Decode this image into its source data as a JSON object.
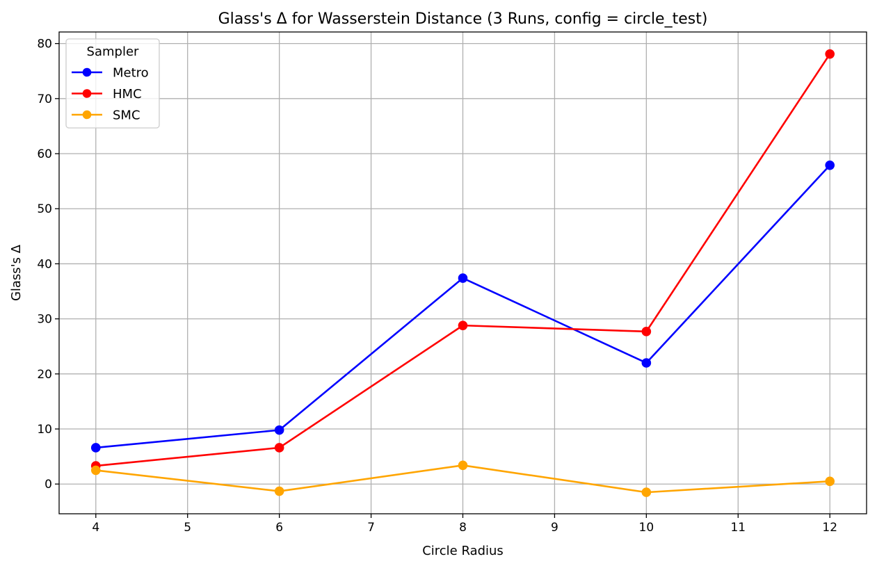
{
  "chart_data": {
    "type": "line",
    "title": "Glass's Δ for Wasserstein Distance (3 Runs, config = circle_test)",
    "xlabel": "Circle Radius",
    "ylabel": "Glass's Δ",
    "xlim": [
      3.6,
      12.4
    ],
    "ylim": [
      -5.4,
      82.1
    ],
    "xticks": [
      4,
      5,
      6,
      7,
      8,
      9,
      10,
      11,
      12
    ],
    "yticks": [
      0,
      10,
      20,
      30,
      40,
      50,
      60,
      70,
      80
    ],
    "grid": true,
    "legend": {
      "title": "Sampler",
      "placement": "top-left"
    },
    "x": [
      4,
      6,
      8,
      10,
      12
    ],
    "series": [
      {
        "name": "Metro",
        "color": "#0000ff",
        "values": [
          6.6,
          9.8,
          37.4,
          22.0,
          57.9
        ]
      },
      {
        "name": "HMC",
        "color": "#ff0000",
        "values": [
          3.3,
          6.6,
          28.8,
          27.7,
          78.1
        ]
      },
      {
        "name": "SMC",
        "color": "#ffa500",
        "values": [
          2.5,
          -1.3,
          3.4,
          -1.5,
          0.5
        ]
      }
    ]
  }
}
